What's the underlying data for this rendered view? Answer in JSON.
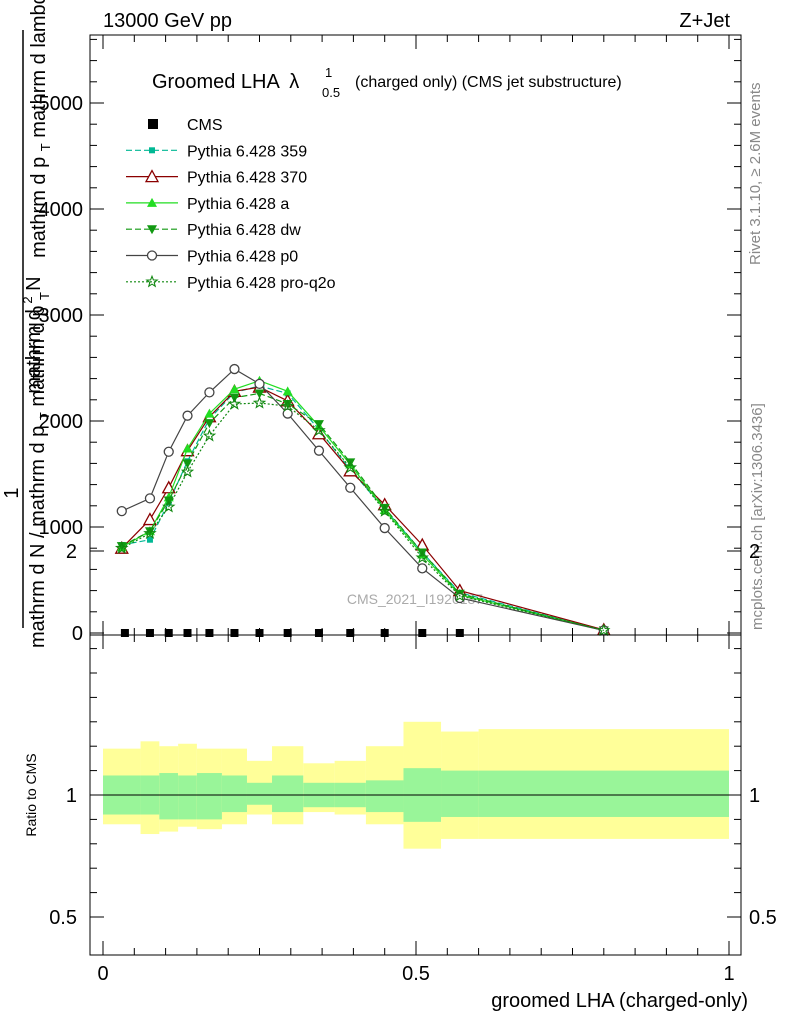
{
  "header": {
    "left": "13000 GeV pp",
    "right": "Z+Jet"
  },
  "side": {
    "rivet": "Rivet 3.1.10, ≥ 2.6M events",
    "mcplots": "mcplots.cern.ch [arXiv:1306.3436]"
  },
  "chart_data": [
    {
      "type": "line",
      "title_main": "Groomed LHA",
      "title_lambda": "λ",
      "title_sup": "1",
      "title_sub": "0.5",
      "title_rest": "(charged only) (CMS jet substructure)",
      "ylabel": "1 / mathrm dN / mathrm d p_T mathrm d p_T mathrm d lambda mathrm d^2N",
      "ylabel_parts": {
        "one": "1",
        "num_line1": "mathrm d",
        "num_line1_sup": "2",
        "num_line1_end": "N",
        "num_line2": "mathrm d p",
        "num_line2_sub": "T",
        "num_line2_end": " mathrm d lambda",
        "den_line1": "mathrm d N / mathrm d p",
        "den_line1_sub": "T",
        "den_line1_end": " mathrm d p",
        "den_line1_sub2": "T"
      },
      "watermark": "CMS_2021_I1920187",
      "xlim": [
        0,
        1
      ],
      "ylim": [
        0,
        5000
      ],
      "yticks": [
        0,
        1000,
        2000,
        3000,
        4000,
        5000
      ],
      "ytick_labels": [
        "0",
        "1000",
        "2000",
        "3000",
        "4000",
        "5000"
      ],
      "cms": {
        "name": "CMS",
        "x": [
          0.035,
          0.075,
          0.105,
          0.135,
          0.17,
          0.21,
          0.25,
          0.295,
          0.345,
          0.395,
          0.45,
          0.51,
          0.57
        ],
        "y": [
          0,
          0,
          0,
          0,
          0,
          0,
          0,
          0,
          0,
          0,
          0,
          0,
          0
        ]
      },
      "series": [
        {
          "name": "Pythia 6.428 359",
          "color": "#00b894",
          "dash": "6,3",
          "marker": "square-filled",
          "x": [
            0.03,
            0.075,
            0.105,
            0.135,
            0.17,
            0.21,
            0.25,
            0.295,
            0.345,
            0.395,
            0.45,
            0.51,
            0.57,
            0.8
          ],
          "y": [
            830,
            880,
            1230,
            1620,
            2020,
            2270,
            2330,
            2260,
            1920,
            1540,
            1170,
            760,
            380,
            25
          ]
        },
        {
          "name": "Pythia 6.428 370",
          "color": "#8b0000",
          "dash": "",
          "marker": "triangle-open",
          "x": [
            0.03,
            0.075,
            0.105,
            0.135,
            0.17,
            0.21,
            0.25,
            0.295,
            0.345,
            0.395,
            0.45,
            0.51,
            0.57,
            0.8
          ],
          "y": [
            800,
            1070,
            1370,
            1720,
            2040,
            2280,
            2320,
            2190,
            1880,
            1530,
            1210,
            830,
            400,
            30
          ]
        },
        {
          "name": "Pythia 6.428 a",
          "color": "#22dd22",
          "dash": "",
          "marker": "triangle-filled",
          "x": [
            0.03,
            0.075,
            0.105,
            0.135,
            0.17,
            0.21,
            0.25,
            0.295,
            0.345,
            0.395,
            0.45,
            0.51,
            0.57,
            0.8
          ],
          "y": [
            810,
            960,
            1280,
            1740,
            2070,
            2300,
            2380,
            2280,
            1950,
            1590,
            1160,
            740,
            360,
            25
          ]
        },
        {
          "name": "Pythia 6.428 dw",
          "color": "#119911",
          "dash": "6,3",
          "marker": "triangledown-filled",
          "x": [
            0.03,
            0.075,
            0.105,
            0.135,
            0.17,
            0.21,
            0.25,
            0.295,
            0.345,
            0.395,
            0.45,
            0.51,
            0.57,
            0.8
          ],
          "y": [
            820,
            960,
            1250,
            1600,
            1980,
            2220,
            2260,
            2160,
            1970,
            1610,
            1180,
            760,
            370,
            25
          ]
        },
        {
          "name": "Pythia 6.428 p0",
          "color": "#444444",
          "dash": "",
          "marker": "circle-open",
          "x": [
            0.03,
            0.075,
            0.105,
            0.135,
            0.17,
            0.21,
            0.25,
            0.295,
            0.345,
            0.395,
            0.45,
            0.51,
            0.57,
            0.8
          ],
          "y": [
            1150,
            1270,
            1710,
            2050,
            2270,
            2490,
            2350,
            2070,
            1720,
            1370,
            990,
            610,
            330,
            25
          ]
        },
        {
          "name": "Pythia 6.428 pro-q2o",
          "color": "#118811",
          "dash": "2,2",
          "marker": "star",
          "x": [
            0.03,
            0.075,
            0.105,
            0.135,
            0.17,
            0.21,
            0.25,
            0.295,
            0.345,
            0.395,
            0.45,
            0.51,
            0.57,
            0.8
          ],
          "y": [
            800,
            940,
            1190,
            1520,
            1860,
            2160,
            2170,
            2140,
            1910,
            1560,
            1150,
            710,
            350,
            25
          ]
        }
      ]
    },
    {
      "type": "area",
      "ylabel": "Ratio to CMS",
      "xlabel": "groomed LHA (charged-only)",
      "xlim": [
        0,
        1
      ],
      "ylim": [
        0.3,
        2.25
      ],
      "yticks": [
        0.5,
        1,
        2
      ],
      "ytick_labels": [
        "0.5",
        "1",
        "2"
      ],
      "xticks": [
        0,
        0.5,
        1
      ],
      "xtick_labels": [
        "0",
        "0.5",
        "1"
      ],
      "bin_edges": [
        0,
        0.06,
        0.09,
        0.12,
        0.15,
        0.19,
        0.23,
        0.27,
        0.32,
        0.37,
        0.42,
        0.48,
        0.54,
        0.6,
        1.0
      ],
      "band_inner": [
        [
          0.92,
          1.08
        ],
        [
          0.92,
          1.08
        ],
        [
          0.9,
          1.09
        ],
        [
          0.9,
          1.08
        ],
        [
          0.9,
          1.09
        ],
        [
          0.93,
          1.08
        ],
        [
          0.96,
          1.05
        ],
        [
          0.93,
          1.08
        ],
        [
          0.95,
          1.05
        ],
        [
          0.95,
          1.05
        ],
        [
          0.93,
          1.06
        ],
        [
          0.89,
          1.11
        ],
        [
          0.91,
          1.1
        ],
        [
          0.91,
          1.1
        ]
      ],
      "band_outer": [
        [
          0.88,
          1.19
        ],
        [
          0.84,
          1.22
        ],
        [
          0.85,
          1.2
        ],
        [
          0.87,
          1.21
        ],
        [
          0.86,
          1.19
        ],
        [
          0.88,
          1.19
        ],
        [
          0.92,
          1.14
        ],
        [
          0.88,
          1.2
        ],
        [
          0.93,
          1.13
        ],
        [
          0.92,
          1.14
        ],
        [
          0.88,
          1.2
        ],
        [
          0.78,
          1.3
        ],
        [
          0.82,
          1.26
        ],
        [
          0.82,
          1.27
        ]
      ],
      "inner_color": "#99f599",
      "outer_color": "#ffff99"
    }
  ]
}
